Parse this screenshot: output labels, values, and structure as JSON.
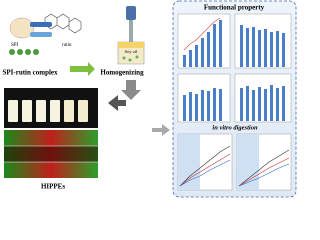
{
  "complex": {
    "title": "SPI-rutin complex",
    "labels": [
      "SPI",
      "rutin"
    ]
  },
  "process": {
    "step": "Homogenizing",
    "oil": "Soy oil"
  },
  "product": {
    "title": "HIPPEs"
  },
  "panel": {
    "functional_title": "Functional property",
    "digestion_title": "in vitro digestion"
  }
}
